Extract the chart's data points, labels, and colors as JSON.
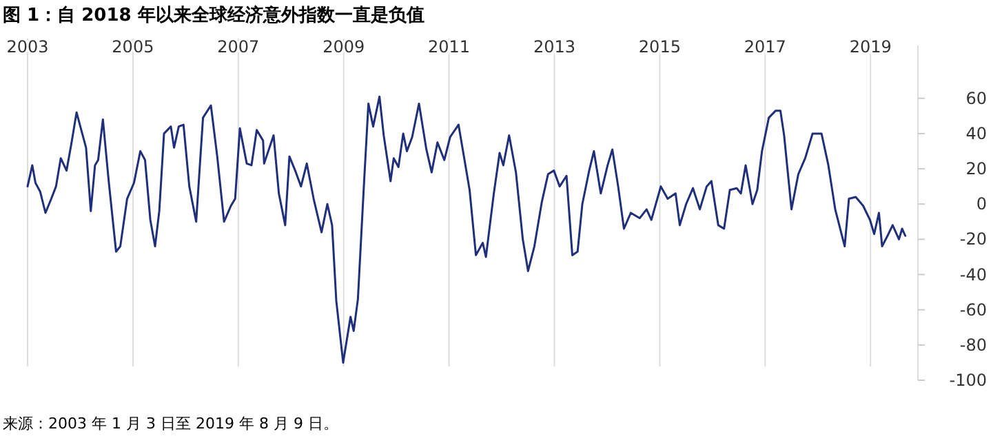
{
  "chart_data": {
    "type": "line",
    "title": "图 1：自 2018 年以来全球经济意外指数一直是负值",
    "annotations": [
      "来源：2003 年 1 月 3 日至 2019 年 8 月 9 日。"
    ],
    "x": [
      2003.0,
      2003.09,
      2003.15,
      2003.24,
      2003.34,
      2003.45,
      2003.54,
      2003.63,
      2003.74,
      2003.83,
      2003.93,
      2004.02,
      2004.11,
      2004.2,
      2004.28,
      2004.34,
      2004.43,
      2004.54,
      2004.68,
      2004.76,
      2004.89,
      2005.02,
      2005.14,
      2005.23,
      2005.33,
      2005.42,
      2005.5,
      2005.59,
      2005.72,
      2005.78,
      2005.87,
      2005.96,
      2006.07,
      2006.2,
      2006.33,
      2006.48,
      2006.6,
      2006.73,
      2006.86,
      2006.94,
      2007.03,
      2007.16,
      2007.25,
      2007.35,
      2007.47,
      2007.49,
      2007.67,
      2007.77,
      2007.89,
      2007.97,
      2008.08,
      2008.19,
      2008.3,
      2008.43,
      2008.58,
      2008.69,
      2008.78,
      2008.86,
      2008.99,
      2009.13,
      2009.19,
      2009.27,
      2009.39,
      2009.47,
      2009.56,
      2009.68,
      2009.76,
      2009.89,
      2009.95,
      2010.04,
      2010.13,
      2010.2,
      2010.3,
      2010.43,
      2010.57,
      2010.67,
      2010.78,
      2010.91,
      2011.02,
      2011.18,
      2011.26,
      2011.39,
      2011.51,
      2011.64,
      2011.7,
      2011.85,
      2011.96,
      2012.03,
      2012.14,
      2012.27,
      2012.4,
      2012.5,
      2012.62,
      2012.76,
      2012.88,
      2012.99,
      2013.1,
      2013.23,
      2013.34,
      2013.44,
      2013.53,
      2013.66,
      2013.75,
      2013.88,
      2014.01,
      2014.1,
      2014.21,
      2014.32,
      2014.45,
      2014.62,
      2014.75,
      2014.84,
      2015.02,
      2015.15,
      2015.3,
      2015.38,
      2015.5,
      2015.63,
      2015.76,
      2015.89,
      2015.98,
      2016.11,
      2016.22,
      2016.33,
      2016.46,
      2016.54,
      2016.63,
      2016.76,
      2016.85,
      2016.94,
      2017.07,
      2017.2,
      2017.29,
      2017.36,
      2017.5,
      2017.63,
      2017.76,
      2017.9,
      2018.07,
      2018.2,
      2018.33,
      2018.51,
      2018.59,
      2018.72,
      2018.86,
      2018.99,
      2019.07,
      2019.16,
      2019.22,
      2019.34,
      2019.42,
      2019.54,
      2019.6,
      2019.66
    ],
    "values": [
      10,
      22,
      12,
      7,
      -5,
      3,
      10,
      26,
      19,
      34,
      52,
      42,
      32,
      -4,
      22,
      25,
      48,
      13,
      -27,
      -24,
      3,
      12,
      30,
      25,
      -9,
      -24,
      -4,
      40,
      44,
      32,
      44,
      45,
      10,
      -10,
      49,
      56,
      27,
      -10,
      -1,
      3,
      43,
      23,
      22,
      42,
      36,
      23,
      39,
      6,
      -12,
      27,
      19,
      10,
      23,
      3,
      -16,
      0,
      -12,
      -55,
      -90,
      -64,
      -72,
      -54,
      14,
      57,
      44,
      61,
      39,
      13,
      26,
      21,
      40,
      30,
      38,
      57,
      31,
      18,
      35,
      25,
      38,
      45,
      31,
      8,
      -29,
      -22,
      -30,
      6,
      29,
      22,
      39,
      18,
      -20,
      -38,
      -24,
      1,
      17,
      19,
      10,
      16,
      -29,
      -27,
      0,
      19,
      30,
      6,
      22,
      31,
      10,
      -14,
      -5,
      -8,
      -3,
      -9,
      10,
      3,
      6,
      -12,
      0,
      9,
      -3,
      10,
      13,
      -12,
      -14,
      8,
      9,
      6,
      22,
      0,
      8,
      30,
      49,
      53,
      53,
      39,
      -3,
      17,
      26,
      40,
      40,
      22,
      -3,
      -24,
      3,
      4,
      -1,
      -9,
      -17,
      -5,
      -24,
      -17,
      -12,
      -20,
      -14,
      -18
    ],
    "color": "#1f2f7a",
    "xlim": [
      2003,
      2019.9
    ],
    "xticks": [
      2003,
      2005,
      2007,
      2009,
      2011,
      2013,
      2015,
      2017,
      2019
    ],
    "ylim": [
      -100,
      90
    ],
    "yticks": [
      -100,
      -80,
      -60,
      -40,
      -20,
      0,
      20,
      40,
      60
    ],
    "grid": "x"
  }
}
